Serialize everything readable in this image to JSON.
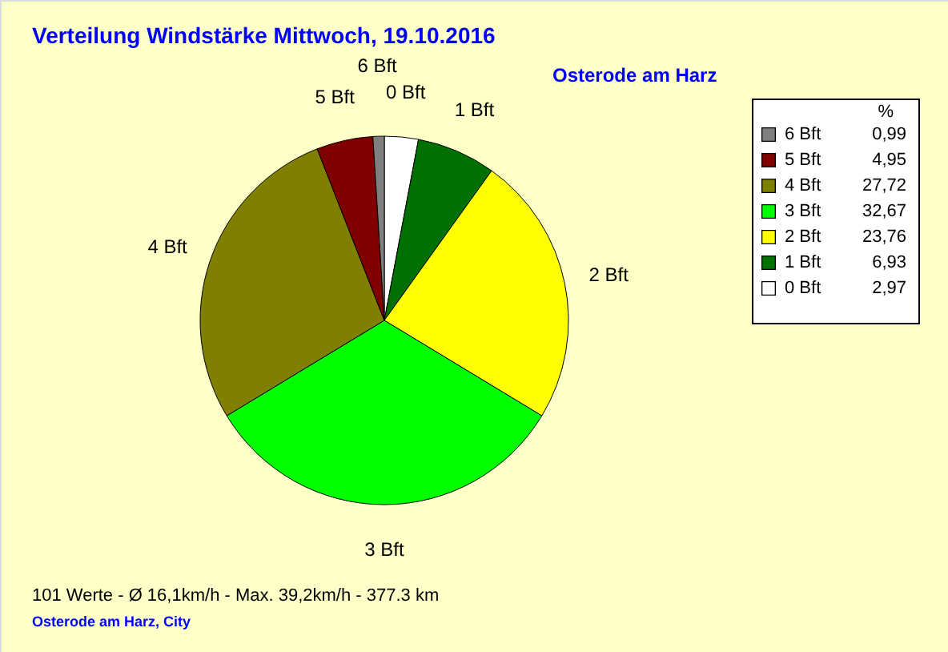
{
  "chart_data": {
    "type": "pie",
    "title": "Verteilung Windstärke  Mittwoch, 19.10.2016",
    "subtitle": "Osterode am Harz",
    "legend_title": "%",
    "categories": [
      "0 Bft",
      "1 Bft",
      "2 Bft",
      "3 Bft",
      "4 Bft",
      "5 Bft",
      "6 Bft"
    ],
    "values": [
      2.97,
      6.93,
      23.76,
      32.67,
      27.72,
      4.95,
      0.99
    ],
    "value_labels": [
      "2,97",
      "6,93",
      "23,76",
      "32,67",
      "27,72",
      "4,95",
      "0,99"
    ],
    "colors": [
      "#ffffff",
      "#007000",
      "#ffff00",
      "#00ff00",
      "#808000",
      "#800000",
      "#808080"
    ],
    "legend": "top right",
    "annotations": [
      "101 Werte   -   Ø 16,1km/h   -   Max. 39,2km/h   -   377.3 km",
      "Osterode am Harz, City"
    ]
  }
}
